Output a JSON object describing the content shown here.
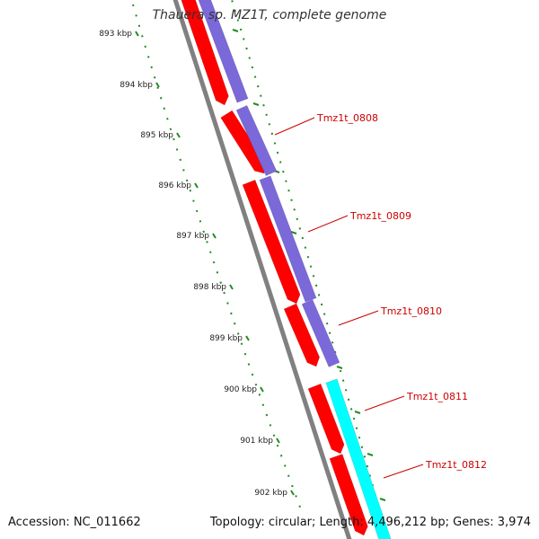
{
  "header": {
    "title": "Thauera sp. MZ1T, complete genome"
  },
  "footer": {
    "accession": "Accession: NC_011662",
    "summary": "Topology: circular; Length: 4,496,212 bp; Genes: 3,974"
  },
  "axis": {
    "ticks": [
      "893 kbp",
      "894 kbp",
      "895 kbp",
      "896 kbp",
      "897 kbp",
      "898 kbp",
      "899 kbp",
      "900 kbp",
      "901 kbp",
      "902 kbp"
    ]
  },
  "genes": [
    {
      "id": "Tmz1t_0808"
    },
    {
      "id": "Tmz1t_0809"
    },
    {
      "id": "Tmz1t_0810"
    },
    {
      "id": "Tmz1t_0811"
    },
    {
      "id": "Tmz1t_0812"
    }
  ],
  "colors": {
    "cds": "#ff0000",
    "cog_purple": "#7b68d9",
    "cog_cyan": "#00ffff",
    "backbone": "#808080",
    "ticks": "#228b22",
    "label": "#cc0000"
  }
}
